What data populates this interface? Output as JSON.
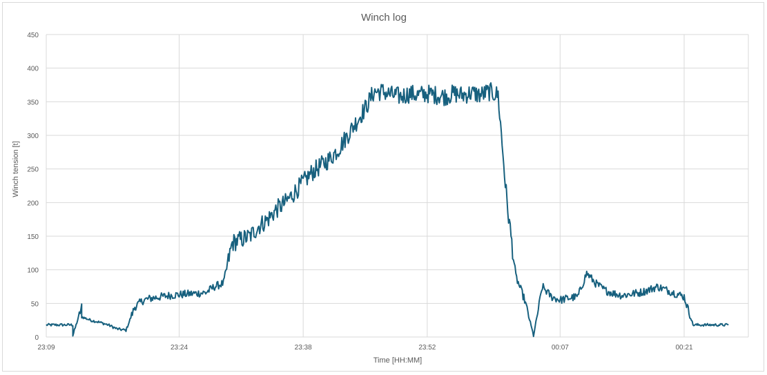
{
  "chart_data": {
    "type": "line",
    "title": "Winch log",
    "xlabel": "Time [HH:MM]",
    "ylabel": "Winch tension [t]",
    "ylim": [
      0,
      450
    ],
    "yticks": [
      0,
      50,
      100,
      150,
      200,
      250,
      300,
      350,
      400,
      450
    ],
    "xticks": [
      "23:09",
      "23:24",
      "23:38",
      "23:52",
      "00:07",
      "00:21"
    ],
    "grid": true,
    "legend": "none",
    "line_color": "#17607e",
    "series": [
      {
        "x": [
          "23:09",
          "23:10",
          "23:12",
          "23:12",
          "23:13",
          "23:13",
          "23:14",
          "23:15",
          "23:16",
          "23:17",
          "23:18",
          "23:19",
          "23:20",
          "23:21",
          "23:22",
          "23:23",
          "23:24",
          "23:25",
          "23:26",
          "23:27",
          "23:28",
          "23:29",
          "23:30",
          "23:31",
          "23:32",
          "23:33",
          "23:34",
          "23:35",
          "23:36",
          "23:37",
          "23:38",
          "23:39",
          "23:40",
          "23:41",
          "23:42",
          "23:43",
          "23:44",
          "23:45",
          "23:46",
          "23:47",
          "23:48",
          "23:49",
          "23:50",
          "23:51",
          "23:52",
          "23:53",
          "23:54",
          "23:55",
          "23:56",
          "23:57",
          "23:58",
          "23:59",
          "00:00",
          "00:01",
          "00:02",
          "00:03",
          "00:04",
          "00:05",
          "00:06",
          "00:07",
          "00:08",
          "00:09",
          "00:10",
          "00:11",
          "00:12",
          "00:13",
          "00:14",
          "00:15",
          "00:16",
          "00:17",
          "00:18",
          "00:19",
          "00:20",
          "00:21",
          "00:22",
          "00:23",
          "00:24",
          "00:25",
          "00:26"
        ],
        "y": [
          18,
          18,
          18,
          2,
          45,
          30,
          25,
          22,
          18,
          12,
          10,
          45,
          55,
          58,
          60,
          62,
          63,
          64,
          65,
          66,
          75,
          80,
          140,
          145,
          150,
          165,
          175,
          190,
          200,
          215,
          230,
          245,
          255,
          265,
          280,
          300,
          320,
          340,
          365,
          365,
          360,
          358,
          362,
          360,
          362,
          360,
          358,
          362,
          360,
          363,
          360,
          365,
          360,
          200,
          90,
          55,
          2,
          75,
          60,
          55,
          58,
          60,
          95,
          80,
          70,
          65,
          62,
          64,
          66,
          70,
          75,
          70,
          65,
          60,
          18,
          18,
          18,
          18,
          18
        ]
      }
    ]
  }
}
